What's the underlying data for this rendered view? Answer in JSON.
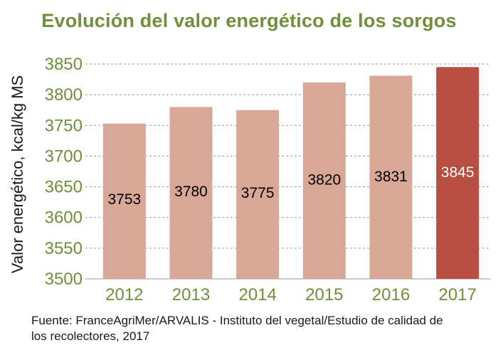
{
  "chart_data": {
    "type": "bar",
    "title": "Evolución del valor energético de los sorgos",
    "ylabel": "Valor energético, kcal/kg MS",
    "xlabel": "",
    "categories": [
      "2012",
      "2013",
      "2014",
      "2015",
      "2016",
      "2017"
    ],
    "values": [
      3753,
      3780,
      3775,
      3820,
      3831,
      3845
    ],
    "ylim": [
      3500,
      3850
    ],
    "yticks": [
      3500,
      3550,
      3600,
      3650,
      3700,
      3750,
      3800,
      3850
    ],
    "grid": true,
    "colors": {
      "bar": "#d9a796",
      "highlight": "#b84d40",
      "highlight_index": 5,
      "title": "#6f8f3a",
      "axis_text": "#6f8f3a"
    },
    "source": "Fuente: FranceAgriMer/ARVALIS - Instituto del vegetal/Estudio de calidad de los recolectores, 2017"
  }
}
